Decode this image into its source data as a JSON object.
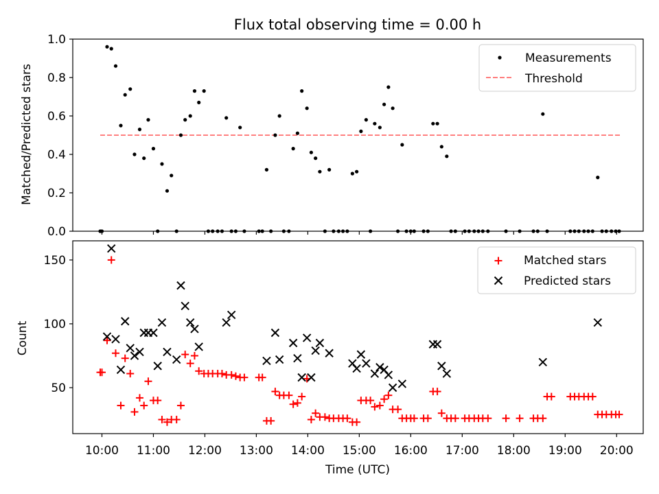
{
  "chart_data": [
    {
      "type": "scatter",
      "title": "Flux total observing time = 0.00 h",
      "xlabel": "",
      "ylabel": "Matched/Predicted stars",
      "ylim": [
        0,
        1.0
      ],
      "yticks": [
        "0.0",
        "0.2",
        "0.4",
        "0.6",
        "0.8",
        "1.0"
      ],
      "ytick_values": [
        0,
        0.2,
        0.4,
        0.6,
        0.8,
        1.0
      ],
      "legend": {
        "position": "top-right",
        "entries": [
          "Measurements",
          "Threshold"
        ]
      },
      "threshold": {
        "name": "Threshold",
        "value": 0.5,
        "x_range": [
          "09:58",
          "20:04"
        ],
        "color": "#ff7f7f"
      },
      "series": [
        {
          "name": "Measurements",
          "marker": "dot",
          "color": "#000000",
          "points": [
            [
              "09:58",
              0
            ],
            [
              "10:00",
              0
            ],
            [
              "10:06",
              0.96
            ],
            [
              "10:11",
              0.95
            ],
            [
              "10:16",
              0.86
            ],
            [
              "10:22",
              0.55
            ],
            [
              "10:27",
              0.71
            ],
            [
              "10:33",
              0.74
            ],
            [
              "10:38",
              0.4
            ],
            [
              "10:44",
              0.53
            ],
            [
              "10:49",
              0.38
            ],
            [
              "10:54",
              0.58
            ],
            [
              "11:00",
              0.43
            ],
            [
              "11:05",
              0
            ],
            [
              "11:10",
              0.35
            ],
            [
              "11:16",
              0.21
            ],
            [
              "11:21",
              0.29
            ],
            [
              "11:27",
              0
            ],
            [
              "11:32",
              0.5
            ],
            [
              "11:37",
              0.58
            ],
            [
              "11:43",
              0.6
            ],
            [
              "11:48",
              0.73
            ],
            [
              "11:53",
              0.67
            ],
            [
              "11:59",
              0.73
            ],
            [
              "12:04",
              0
            ],
            [
              "12:09",
              0
            ],
            [
              "12:15",
              0
            ],
            [
              "12:20",
              0
            ],
            [
              "12:25",
              0.59
            ],
            [
              "12:31",
              0
            ],
            [
              "12:36",
              0
            ],
            [
              "12:41",
              0.54
            ],
            [
              "12:46",
              0
            ],
            [
              "13:03",
              0
            ],
            [
              "13:07",
              0
            ],
            [
              "13:12",
              0.32
            ],
            [
              "13:17",
              0
            ],
            [
              "13:22",
              0.5
            ],
            [
              "13:27",
              0.6
            ],
            [
              "13:32",
              0
            ],
            [
              "13:38",
              0
            ],
            [
              "13:43",
              0.43
            ],
            [
              "13:48",
              0.51
            ],
            [
              "13:53",
              0.73
            ],
            [
              "13:59",
              0.64
            ],
            [
              "14:04",
              0.41
            ],
            [
              "14:09",
              0.38
            ],
            [
              "14:14",
              0.31
            ],
            [
              "14:20",
              0
            ],
            [
              "14:25",
              0.32
            ],
            [
              "14:30",
              0
            ],
            [
              "14:36",
              0
            ],
            [
              "14:41",
              0
            ],
            [
              "14:46",
              0
            ],
            [
              "14:52",
              0.3
            ],
            [
              "14:57",
              0.31
            ],
            [
              "15:02",
              0.52
            ],
            [
              "15:08",
              0.58
            ],
            [
              "15:13",
              0
            ],
            [
              "15:18",
              0.56
            ],
            [
              "15:24",
              0.54
            ],
            [
              "15:29",
              0.66
            ],
            [
              "15:34",
              0.75
            ],
            [
              "15:39",
              0.64
            ],
            [
              "15:45",
              0
            ],
            [
              "15:50",
              0.45
            ],
            [
              "15:55",
              0
            ],
            [
              "16:00",
              0
            ],
            [
              "16:04",
              0
            ],
            [
              "16:15",
              0
            ],
            [
              "16:20",
              0
            ],
            [
              "16:26",
              0.56
            ],
            [
              "16:31",
              0.56
            ],
            [
              "16:36",
              0.44
            ],
            [
              "16:42",
              0.39
            ],
            [
              "16:47",
              0
            ],
            [
              "16:52",
              0
            ],
            [
              "17:03",
              0
            ],
            [
              "17:08",
              0
            ],
            [
              "17:14",
              0
            ],
            [
              "17:19",
              0
            ],
            [
              "17:24",
              0
            ],
            [
              "17:30",
              0
            ],
            [
              "17:51",
              0
            ],
            [
              "18:07",
              0
            ],
            [
              "18:23",
              0
            ],
            [
              "18:28",
              0
            ],
            [
              "18:34",
              0.61
            ],
            [
              "18:39",
              0
            ],
            [
              "19:06",
              0
            ],
            [
              "19:11",
              0
            ],
            [
              "19:16",
              0
            ],
            [
              "19:22",
              0
            ],
            [
              "19:27",
              0
            ],
            [
              "19:32",
              0
            ],
            [
              "19:38",
              0.28
            ],
            [
              "19:43",
              0
            ],
            [
              "19:48",
              0
            ],
            [
              "19:54",
              0
            ],
            [
              "19:59",
              0
            ],
            [
              "20:03",
              0
            ]
          ]
        }
      ]
    },
    {
      "type": "scatter",
      "title": "",
      "xlabel": "Time (UTC)",
      "ylabel": "Count",
      "ylim": [
        14,
        165
      ],
      "yticks": [
        "50",
        "100",
        "150"
      ],
      "ytick_values": [
        50,
        100,
        150
      ],
      "xlim": [
        "09:26",
        "20:31"
      ],
      "xticks": [
        "10:00",
        "11:00",
        "12:00",
        "13:00",
        "14:00",
        "15:00",
        "16:00",
        "17:00",
        "18:00",
        "19:00",
        "20:00"
      ],
      "legend": {
        "position": "top-right",
        "entries": [
          "Matched stars",
          "Predicted stars"
        ]
      },
      "series": [
        {
          "name": "Matched stars",
          "marker": "plus",
          "color": "#ff0000",
          "points": [
            [
              "09:58",
              62
            ],
            [
              "10:00",
              62
            ],
            [
              "10:06",
              87
            ],
            [
              "10:11",
              150
            ],
            [
              "10:16",
              77
            ],
            [
              "10:22",
              36
            ],
            [
              "10:27",
              73
            ],
            [
              "10:33",
              61
            ],
            [
              "10:38",
              31
            ],
            [
              "10:44",
              42
            ],
            [
              "10:49",
              36
            ],
            [
              "10:54",
              55
            ],
            [
              "11:00",
              40
            ],
            [
              "11:05",
              40
            ],
            [
              "11:10",
              25
            ],
            [
              "11:16",
              23
            ],
            [
              "11:21",
              25
            ],
            [
              "11:27",
              25
            ],
            [
              "11:32",
              36
            ],
            [
              "11:37",
              76
            ],
            [
              "11:43",
              69
            ],
            [
              "11:48",
              75
            ],
            [
              "11:53",
              63
            ],
            [
              "11:59",
              61
            ],
            [
              "12:04",
              61
            ],
            [
              "12:09",
              61
            ],
            [
              "12:15",
              61
            ],
            [
              "12:20",
              61
            ],
            [
              "12:25",
              60
            ],
            [
              "12:31",
              60
            ],
            [
              "12:36",
              59
            ],
            [
              "12:41",
              58
            ],
            [
              "12:46",
              58
            ],
            [
              "13:03",
              58
            ],
            [
              "13:07",
              58
            ],
            [
              "13:12",
              24
            ],
            [
              "13:17",
              24
            ],
            [
              "13:22",
              47
            ],
            [
              "13:27",
              44
            ],
            [
              "13:32",
              44
            ],
            [
              "13:38",
              44
            ],
            [
              "13:43",
              37
            ],
            [
              "13:48",
              38
            ],
            [
              "13:53",
              43
            ],
            [
              "13:59",
              57
            ],
            [
              "14:04",
              25
            ],
            [
              "14:09",
              30
            ],
            [
              "14:14",
              27
            ],
            [
              "14:20",
              27
            ],
            [
              "14:25",
              26
            ],
            [
              "14:30",
              26
            ],
            [
              "14:36",
              26
            ],
            [
              "14:41",
              26
            ],
            [
              "14:46",
              26
            ],
            [
              "14:52",
              23
            ],
            [
              "14:57",
              23
            ],
            [
              "15:02",
              40
            ],
            [
              "15:08",
              40
            ],
            [
              "15:13",
              40
            ],
            [
              "15:18",
              35
            ],
            [
              "15:24",
              36
            ],
            [
              "15:29",
              41
            ],
            [
              "15:34",
              44
            ],
            [
              "15:39",
              33
            ],
            [
              "15:45",
              33
            ],
            [
              "15:50",
              26
            ],
            [
              "15:55",
              26
            ],
            [
              "16:00",
              26
            ],
            [
              "16:04",
              26
            ],
            [
              "16:15",
              26
            ],
            [
              "16:20",
              26
            ],
            [
              "16:26",
              47
            ],
            [
              "16:31",
              47
            ],
            [
              "16:36",
              30
            ],
            [
              "16:42",
              26
            ],
            [
              "16:47",
              26
            ],
            [
              "16:52",
              26
            ],
            [
              "17:03",
              26
            ],
            [
              "17:08",
              26
            ],
            [
              "17:14",
              26
            ],
            [
              "17:19",
              26
            ],
            [
              "17:24",
              26
            ],
            [
              "17:30",
              26
            ],
            [
              "17:51",
              26
            ],
            [
              "18:07",
              26
            ],
            [
              "18:23",
              26
            ],
            [
              "18:28",
              26
            ],
            [
              "18:34",
              26
            ],
            [
              "18:39",
              43
            ],
            [
              "18:44",
              43
            ],
            [
              "19:06",
              43
            ],
            [
              "19:11",
              43
            ],
            [
              "19:16",
              43
            ],
            [
              "19:22",
              43
            ],
            [
              "19:27",
              43
            ],
            [
              "19:32",
              43
            ],
            [
              "19:38",
              29
            ],
            [
              "19:43",
              29
            ],
            [
              "19:48",
              29
            ],
            [
              "19:54",
              29
            ],
            [
              "19:59",
              29
            ],
            [
              "20:03",
              29
            ]
          ]
        },
        {
          "name": "Predicted stars",
          "marker": "x",
          "color": "#000000",
          "points": [
            [
              "10:06",
              90
            ],
            [
              "10:11",
              159
            ],
            [
              "10:16",
              88
            ],
            [
              "10:22",
              64
            ],
            [
              "10:27",
              102
            ],
            [
              "10:33",
              81
            ],
            [
              "10:38",
              75
            ],
            [
              "10:44",
              78
            ],
            [
              "10:49",
              93
            ],
            [
              "10:54",
              93
            ],
            [
              "11:00",
              93
            ],
            [
              "11:05",
              67
            ],
            [
              "11:10",
              101
            ],
            [
              "11:16",
              78
            ],
            [
              "11:27",
              72
            ],
            [
              "11:32",
              130
            ],
            [
              "11:37",
              114
            ],
            [
              "11:43",
              101
            ],
            [
              "11:48",
              96
            ],
            [
              "11:53",
              82
            ],
            [
              "12:25",
              101
            ],
            [
              "12:31",
              107
            ],
            [
              "13:12",
              71
            ],
            [
              "13:22",
              93
            ],
            [
              "13:27",
              72
            ],
            [
              "13:43",
              85
            ],
            [
              "13:48",
              73
            ],
            [
              "13:53",
              58
            ],
            [
              "13:59",
              89
            ],
            [
              "14:04",
              58
            ],
            [
              "14:09",
              79
            ],
            [
              "14:14",
              85
            ],
            [
              "14:25",
              77
            ],
            [
              "14:52",
              69
            ],
            [
              "14:57",
              65
            ],
            [
              "15:02",
              76
            ],
            [
              "15:08",
              69
            ],
            [
              "15:18",
              61
            ],
            [
              "15:24",
              66
            ],
            [
              "15:29",
              64
            ],
            [
              "15:34",
              60
            ],
            [
              "15:39",
              50
            ],
            [
              "15:50",
              53
            ],
            [
              "16:26",
              84
            ],
            [
              "16:31",
              84
            ],
            [
              "16:36",
              67
            ],
            [
              "16:42",
              61
            ],
            [
              "18:34",
              70
            ],
            [
              "19:38",
              101
            ]
          ]
        }
      ]
    }
  ]
}
